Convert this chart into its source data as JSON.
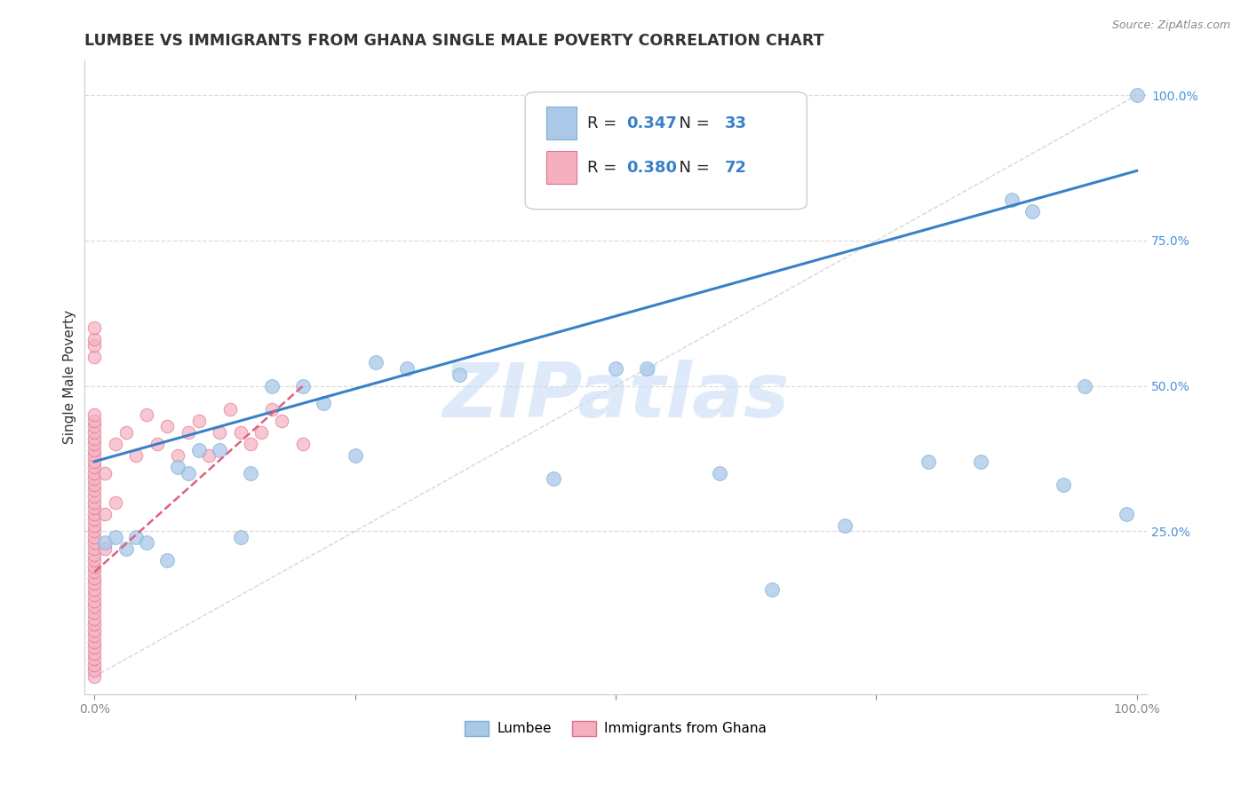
{
  "title": "LUMBEE VS IMMIGRANTS FROM GHANA SINGLE MALE POVERTY CORRELATION CHART",
  "source": "Source: ZipAtlas.com",
  "ylabel": "Single Male Poverty",
  "legend_lumbee": "Lumbee",
  "legend_ghana": "Immigrants from Ghana",
  "lumbee_R": "0.347",
  "lumbee_N": "33",
  "ghana_R": "0.380",
  "ghana_N": "72",
  "lumbee_color": "#aac8e8",
  "ghana_color": "#f5b0c0",
  "lumbee_edge": "#7aafd4",
  "ghana_edge": "#e07090",
  "lumbee_line_color": "#3a80c8",
  "ghana_line_color": "#e06080",
  "watermark_color": "#c8ddf5",
  "background": "#ffffff",
  "title_color": "#333333",
  "source_color": "#888888",
  "ylabel_color": "#333333",
  "tick_color": "#888888",
  "right_tick_color": "#4a90d9",
  "grid_color": "#d8d8d8",
  "diag_color": "#c0c0c0",
  "lumbee_x": [
    0.01,
    0.02,
    0.03,
    0.04,
    0.05,
    0.07,
    0.08,
    0.09,
    0.1,
    0.12,
    0.14,
    0.15,
    0.17,
    0.2,
    0.22,
    0.25,
    0.27,
    0.3,
    0.35,
    0.44,
    0.5,
    0.53,
    0.6,
    0.65,
    0.72,
    0.8,
    0.85,
    0.88,
    0.9,
    0.93,
    0.95,
    0.99,
    1.0
  ],
  "lumbee_y": [
    0.23,
    0.24,
    0.22,
    0.24,
    0.23,
    0.2,
    0.36,
    0.35,
    0.39,
    0.39,
    0.24,
    0.35,
    0.5,
    0.5,
    0.47,
    0.38,
    0.54,
    0.53,
    0.52,
    0.34,
    0.53,
    0.53,
    0.35,
    0.15,
    0.26,
    0.37,
    0.37,
    0.82,
    0.8,
    0.33,
    0.5,
    0.28,
    1.0
  ],
  "ghana_x": [
    0.0,
    0.0,
    0.0,
    0.0,
    0.0,
    0.0,
    0.0,
    0.0,
    0.0,
    0.0,
    0.0,
    0.0,
    0.0,
    0.0,
    0.0,
    0.0,
    0.0,
    0.0,
    0.0,
    0.0,
    0.0,
    0.0,
    0.0,
    0.0,
    0.0,
    0.0,
    0.0,
    0.0,
    0.0,
    0.0,
    0.0,
    0.0,
    0.0,
    0.0,
    0.0,
    0.0,
    0.0,
    0.0,
    0.0,
    0.0,
    0.0,
    0.0,
    0.0,
    0.0,
    0.0,
    0.0,
    0.0,
    0.0,
    0.0,
    0.0,
    0.01,
    0.01,
    0.01,
    0.02,
    0.02,
    0.03,
    0.04,
    0.05,
    0.06,
    0.07,
    0.08,
    0.09,
    0.1,
    0.11,
    0.12,
    0.13,
    0.14,
    0.15,
    0.16,
    0.17,
    0.18,
    0.2
  ],
  "ghana_y": [
    0.0,
    0.01,
    0.02,
    0.03,
    0.04,
    0.05,
    0.06,
    0.07,
    0.08,
    0.09,
    0.1,
    0.11,
    0.12,
    0.13,
    0.14,
    0.15,
    0.16,
    0.17,
    0.18,
    0.19,
    0.2,
    0.21,
    0.22,
    0.23,
    0.24,
    0.25,
    0.26,
    0.27,
    0.28,
    0.29,
    0.3,
    0.31,
    0.32,
    0.33,
    0.34,
    0.35,
    0.36,
    0.37,
    0.38,
    0.39,
    0.4,
    0.41,
    0.42,
    0.43,
    0.44,
    0.45,
    0.55,
    0.57,
    0.58,
    0.6,
    0.22,
    0.28,
    0.35,
    0.3,
    0.4,
    0.42,
    0.38,
    0.45,
    0.4,
    0.43,
    0.38,
    0.42,
    0.44,
    0.38,
    0.42,
    0.46,
    0.42,
    0.4,
    0.42,
    0.46,
    0.44,
    0.4
  ],
  "xlim": [
    -0.01,
    1.01
  ],
  "ylim": [
    -0.03,
    1.06
  ],
  "xticks": [
    0.0,
    0.25,
    0.5,
    0.75,
    1.0
  ],
  "yticks_right": [
    0.25,
    0.5,
    0.75,
    1.0
  ],
  "xticklabels": [
    "0.0%",
    "",
    "",
    "",
    "100.0%"
  ],
  "yticklabels_right": [
    "25.0%",
    "50.0%",
    "75.0%",
    "100.0%"
  ],
  "hgrid_vals": [
    0.25,
    0.5,
    0.75,
    1.0
  ],
  "lumbee_line_x": [
    0.0,
    1.0
  ],
  "lumbee_line_y": [
    0.37,
    0.87
  ],
  "ghana_line_x": [
    0.0,
    0.2
  ],
  "ghana_line_y": [
    0.18,
    0.5
  ]
}
